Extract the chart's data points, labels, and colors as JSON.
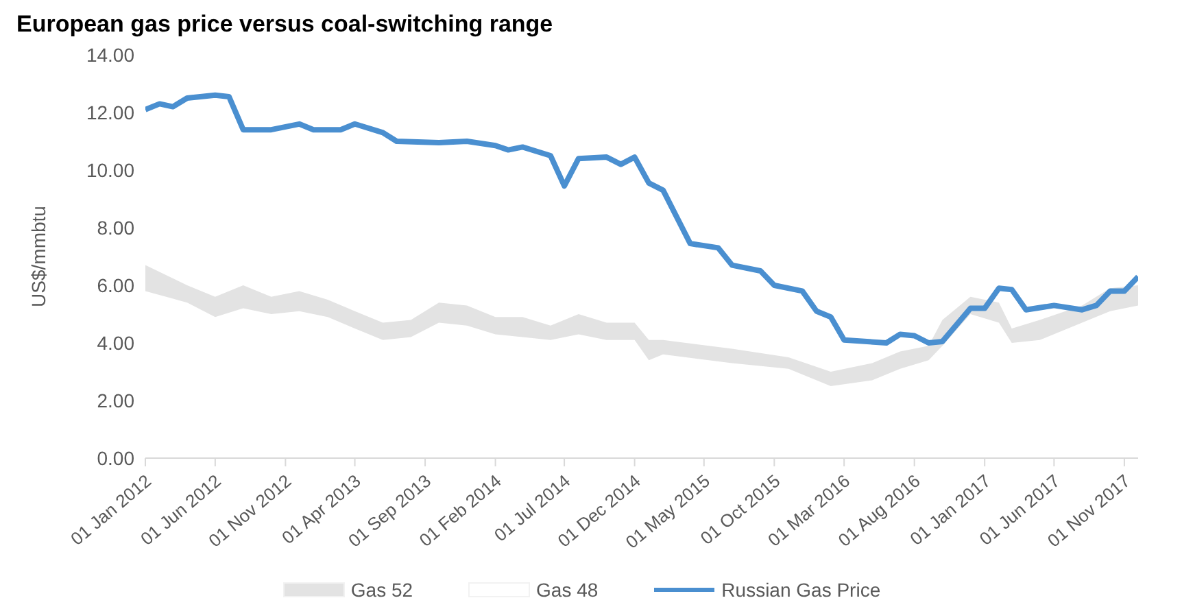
{
  "chart_data": {
    "type": "line",
    "title": "European gas price versus coal-switching range",
    "ylabel": "US$/mmbtu",
    "xlim": [
      "2012-01-01",
      "2017-12-01"
    ],
    "xticks": [
      {
        "value": "2012-01-01",
        "label": "01 Jan 2012"
      },
      {
        "value": "2012-06-01",
        "label": "01 Jun 2012"
      },
      {
        "value": "2012-11-01",
        "label": "01 Nov 2012"
      },
      {
        "value": "2013-04-01",
        "label": "01 Apr 2013"
      },
      {
        "value": "2013-09-01",
        "label": "01 Sep 2013"
      },
      {
        "value": "2014-02-01",
        "label": "01 Feb 2014"
      },
      {
        "value": "2014-07-01",
        "label": "01 Jul 2014"
      },
      {
        "value": "2014-12-01",
        "label": "01 Dec 2014"
      },
      {
        "value": "2015-05-01",
        "label": "01 May 2015"
      },
      {
        "value": "2015-10-01",
        "label": "01 Oct 2015"
      },
      {
        "value": "2016-03-01",
        "label": "01 Mar 2016"
      },
      {
        "value": "2016-08-01",
        "label": "01 Aug 2016"
      },
      {
        "value": "2017-01-01",
        "label": "01 Jan 2017"
      },
      {
        "value": "2017-06-01",
        "label": "01 Jun 2017"
      },
      {
        "value": "2017-11-01",
        "label": "01 Nov 2017"
      }
    ],
    "ylim": [
      0,
      14
    ],
    "yticks": [
      {
        "value": 0,
        "label": "0.00"
      },
      {
        "value": 2,
        "label": "2.00"
      },
      {
        "value": 4,
        "label": "4.00"
      },
      {
        "value": 6,
        "label": "6.00"
      },
      {
        "value": 8,
        "label": "8.00"
      },
      {
        "value": 10,
        "label": "10.00"
      },
      {
        "value": 12,
        "label": "12.00"
      },
      {
        "value": 14,
        "label": "14.00"
      }
    ],
    "grid": false,
    "legend": "bottom",
    "marker": "none",
    "series": [
      {
        "name": "Gas 52",
        "type": "area",
        "color": "#e3e3e3",
        "x": [
          "2012-01-01",
          "2012-04-01",
          "2012-06-01",
          "2012-08-01",
          "2012-10-01",
          "2012-12-01",
          "2013-02-01",
          "2013-04-01",
          "2013-06-01",
          "2013-08-01",
          "2013-10-01",
          "2013-12-01",
          "2014-02-01",
          "2014-04-01",
          "2014-06-01",
          "2014-08-01",
          "2014-10-01",
          "2014-12-01",
          "2015-01-01",
          "2015-02-01",
          "2015-07-01",
          "2015-11-01",
          "2016-02-01",
          "2016-05-01",
          "2016-07-01",
          "2016-09-01",
          "2016-10-01",
          "2016-12-01",
          "2017-02-01",
          "2017-03-01",
          "2017-05-01",
          "2017-08-01",
          "2017-10-01",
          "2017-12-01"
        ],
        "values": [
          6.7,
          6.0,
          5.6,
          6.0,
          5.6,
          5.8,
          5.5,
          5.1,
          4.7,
          4.8,
          5.4,
          5.3,
          4.9,
          4.9,
          4.6,
          5.0,
          4.7,
          4.7,
          4.1,
          4.1,
          3.8,
          3.5,
          3.0,
          3.3,
          3.7,
          3.9,
          4.8,
          5.6,
          5.4,
          4.5,
          4.8,
          5.3,
          5.9,
          6.0
        ]
      },
      {
        "name": "Gas 48",
        "type": "area",
        "color": "#ffffff",
        "x": [
          "2012-01-01",
          "2012-04-01",
          "2012-06-01",
          "2012-08-01",
          "2012-10-01",
          "2012-12-01",
          "2013-02-01",
          "2013-04-01",
          "2013-06-01",
          "2013-08-01",
          "2013-10-01",
          "2013-12-01",
          "2014-02-01",
          "2014-04-01",
          "2014-06-01",
          "2014-08-01",
          "2014-10-01",
          "2014-12-01",
          "2015-01-01",
          "2015-02-01",
          "2015-07-01",
          "2015-11-01",
          "2016-02-01",
          "2016-05-01",
          "2016-07-01",
          "2016-09-01",
          "2016-10-01",
          "2016-12-01",
          "2017-02-01",
          "2017-03-01",
          "2017-05-01",
          "2017-08-01",
          "2017-10-01",
          "2017-12-01"
        ],
        "values": [
          5.8,
          5.4,
          4.9,
          5.2,
          5.0,
          5.1,
          4.9,
          4.5,
          4.1,
          4.2,
          4.7,
          4.6,
          4.3,
          4.2,
          4.1,
          4.3,
          4.1,
          4.1,
          3.4,
          3.6,
          3.3,
          3.1,
          2.5,
          2.7,
          3.1,
          3.4,
          3.9,
          5.0,
          4.7,
          4.0,
          4.1,
          4.7,
          5.1,
          5.3
        ]
      },
      {
        "name": "Russian Gas Price",
        "color": "#4a8fd0",
        "x": [
          "2012-01-01",
          "2012-02-01",
          "2012-03-01",
          "2012-04-01",
          "2012-06-01",
          "2012-07-01",
          "2012-08-01",
          "2012-10-01",
          "2012-12-01",
          "2013-01-01",
          "2013-03-01",
          "2013-04-01",
          "2013-06-01",
          "2013-07-01",
          "2013-10-01",
          "2013-12-01",
          "2014-02-01",
          "2014-03-01",
          "2014-04-01",
          "2014-06-01",
          "2014-07-01",
          "2014-08-01",
          "2014-10-01",
          "2014-11-01",
          "2014-12-01",
          "2015-01-01",
          "2015-02-01",
          "2015-04-01",
          "2015-06-01",
          "2015-07-01",
          "2015-09-01",
          "2015-10-01",
          "2015-12-01",
          "2016-01-01",
          "2016-02-01",
          "2016-03-01",
          "2016-06-01",
          "2016-07-01",
          "2016-08-01",
          "2016-09-01",
          "2016-10-01",
          "2016-12-01",
          "2017-01-01",
          "2017-02-01",
          "2017-03-01",
          "2017-04-01",
          "2017-06-01",
          "2017-08-01",
          "2017-09-01",
          "2017-10-01",
          "2017-11-01",
          "2017-12-01"
        ],
        "values": [
          12.1,
          12.3,
          12.2,
          12.5,
          12.6,
          12.55,
          11.4,
          11.4,
          11.6,
          11.4,
          11.4,
          11.6,
          11.3,
          11.0,
          10.95,
          11.0,
          10.85,
          10.7,
          10.8,
          10.5,
          9.45,
          10.4,
          10.45,
          10.2,
          10.45,
          9.55,
          9.3,
          7.45,
          7.3,
          6.7,
          6.5,
          6.0,
          5.8,
          5.1,
          4.9,
          4.1,
          4.0,
          4.3,
          4.25,
          4.0,
          4.05,
          5.2,
          5.2,
          5.9,
          5.85,
          5.15,
          5.3,
          5.15,
          5.3,
          5.8,
          5.8,
          6.3
        ]
      }
    ]
  }
}
